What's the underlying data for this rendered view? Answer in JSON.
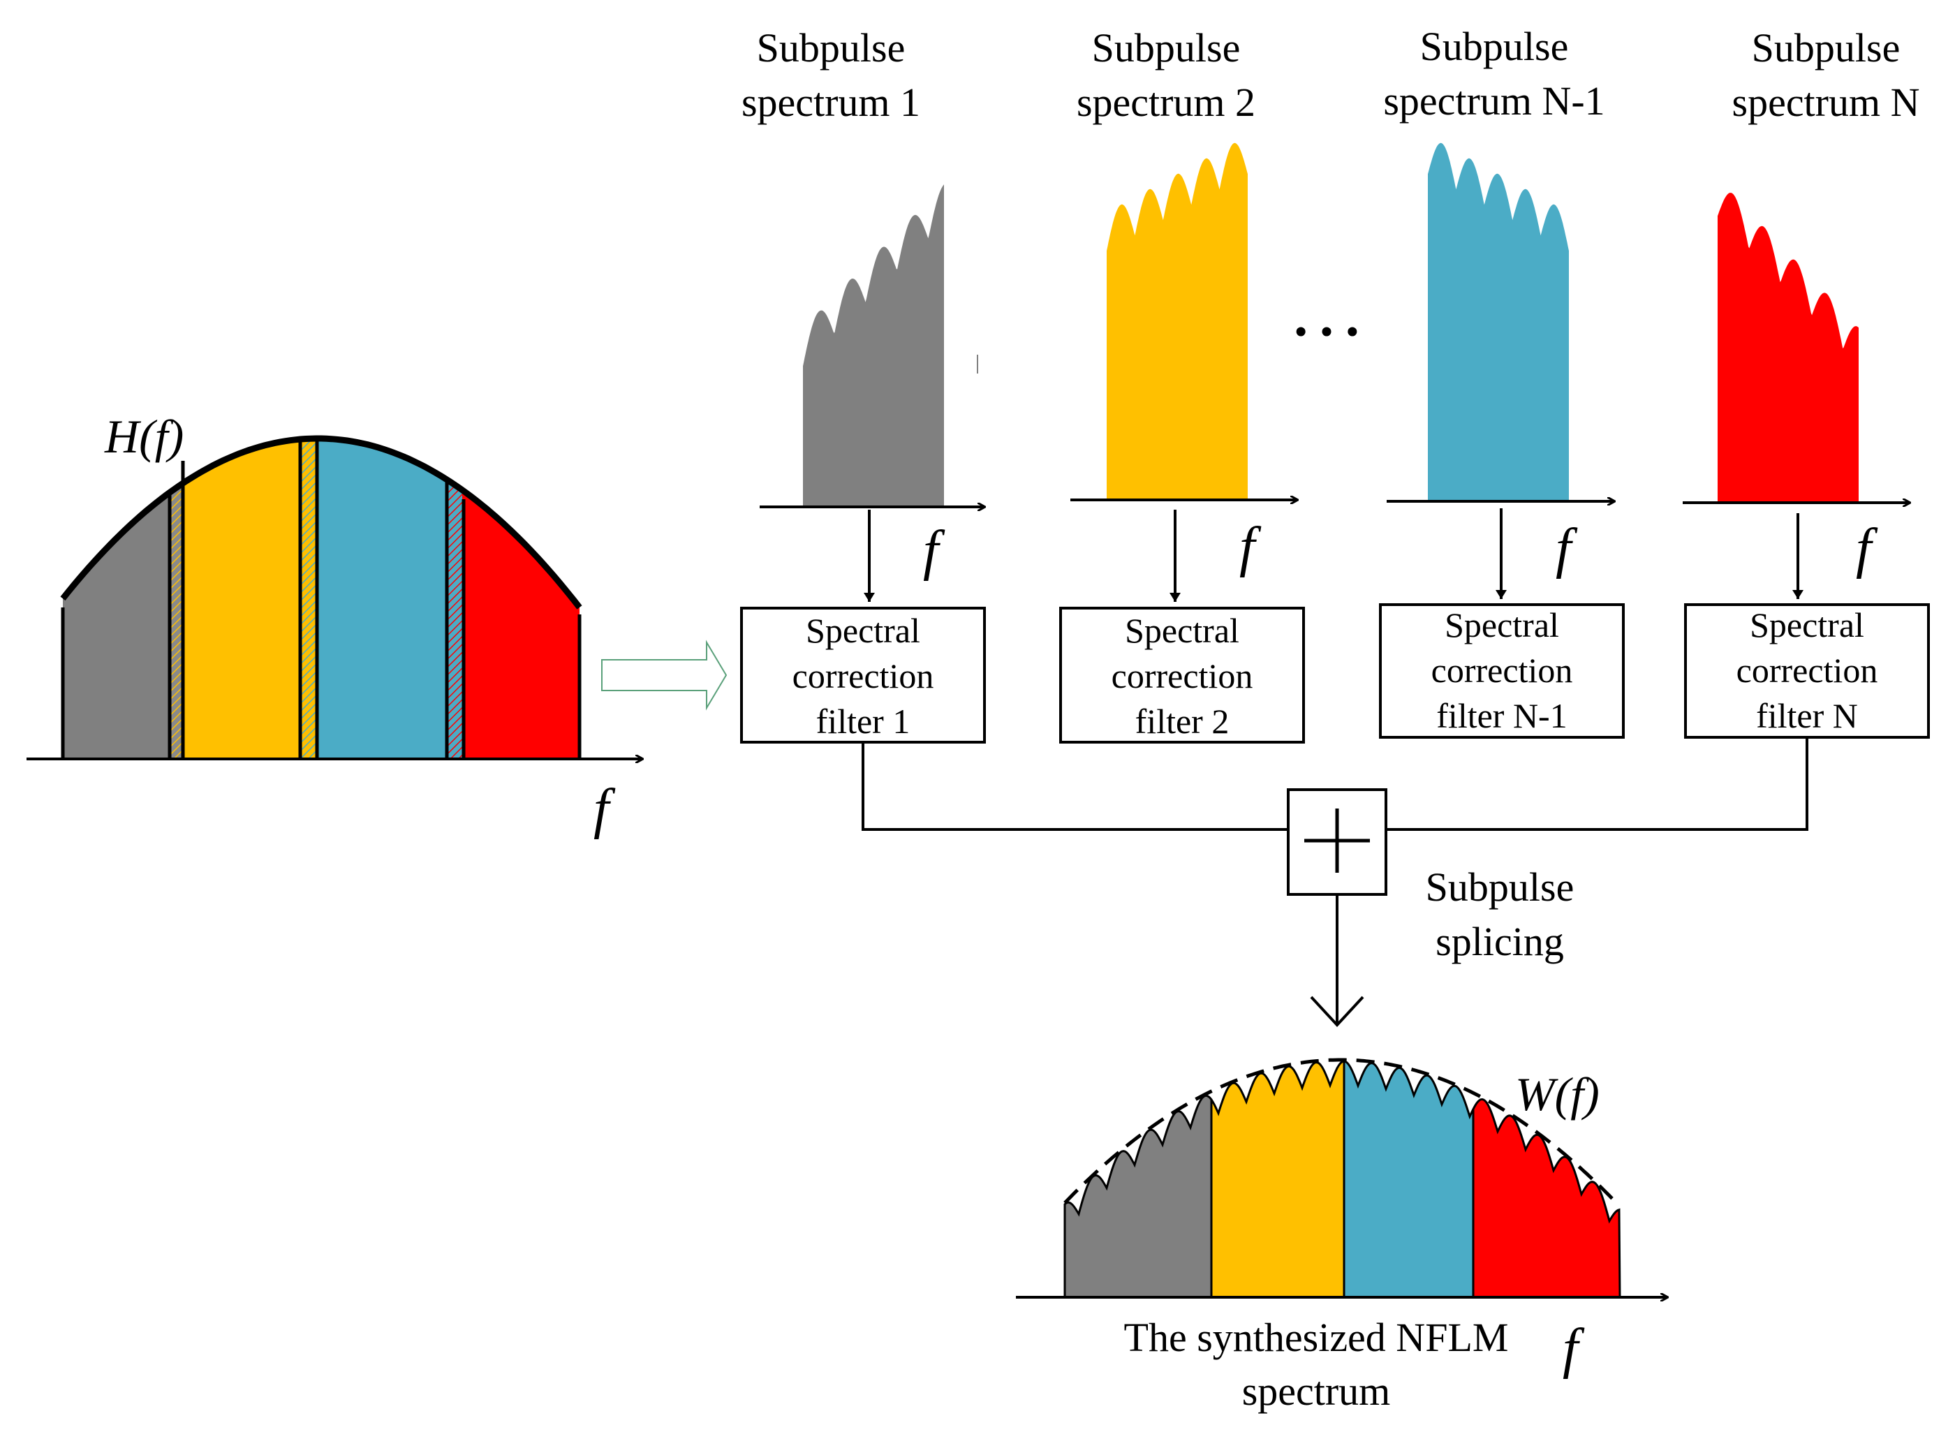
{
  "input_spectrum": {
    "label": "H(f)",
    "axis_label": "f"
  },
  "subpulses": [
    {
      "title_line1": "Subpulse",
      "title_line2": "spectrum 1",
      "color": "#808080",
      "axis_label": "f",
      "filter_line1": "Spectral",
      "filter_line2": "correction",
      "filter_line3": "filter 1"
    },
    {
      "title_line1": "Subpulse",
      "title_line2": "spectrum 2",
      "color": "#FFC000",
      "axis_label": "f",
      "filter_line1": "Spectral",
      "filter_line2": "correction",
      "filter_line3": "filter 2"
    },
    {
      "title_line1": "Subpulse",
      "title_line2": "spectrum N-1",
      "color": "#4BACC6",
      "axis_label": "f",
      "filter_line1": "Spectral",
      "filter_line2": "correction",
      "filter_line3": "filter N-1"
    },
    {
      "title_line1": "Subpulse",
      "title_line2": "spectrum N",
      "color": "#FF0000",
      "axis_label": "f",
      "filter_line1": "Spectral",
      "filter_line2": "correction",
      "filter_line3": "filter N"
    }
  ],
  "ellipsis": "…",
  "summing_symbol": "+",
  "splicing_line1": "Subpulse",
  "splicing_line2": "splicing",
  "output": {
    "envelope_label": "W(f)",
    "axis_label": "f",
    "caption_line1": "The synthesized NFLM",
    "caption_line2": "spectrum"
  },
  "colors": {
    "gray": "#808080",
    "yellow": "#FFC000",
    "blue": "#4BACC6",
    "red": "#FF0000",
    "line": "#000000"
  }
}
